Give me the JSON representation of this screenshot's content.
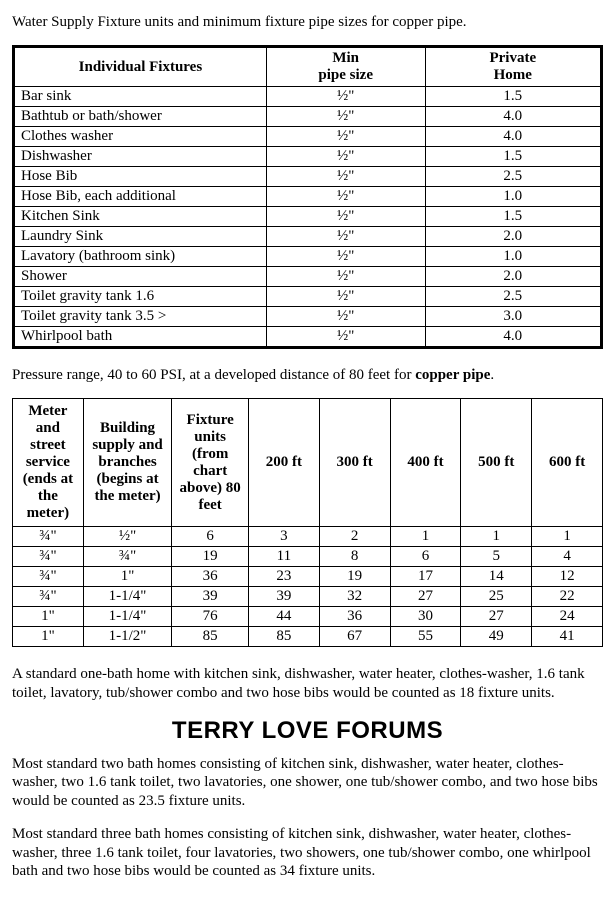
{
  "intro": "Water Supply Fixture units and minimum fixture pipe sizes for copper pipe.",
  "table1": {
    "headers": {
      "col1": "Individual Fixtures",
      "col2_line1": "Min",
      "col2_line2": "pipe size",
      "col3_line1": "Private",
      "col3_line2": "Home"
    },
    "rows": [
      {
        "fixture": "Bar sink",
        "size": "½\"",
        "home": "1.5"
      },
      {
        "fixture": "Bathtub or bath/shower",
        "size": "½\"",
        "home": "4.0"
      },
      {
        "fixture": "Clothes washer",
        "size": "½\"",
        "home": "4.0"
      },
      {
        "fixture": "Dishwasher",
        "size": "½\"",
        "home": "1.5"
      },
      {
        "fixture": "Hose Bib",
        "size": "½\"",
        "home": "2.5"
      },
      {
        "fixture": "Hose Bib, each additional",
        "size": "½\"",
        "home": "1.0"
      },
      {
        "fixture": "Kitchen Sink",
        "size": "½\"",
        "home": "1.5"
      },
      {
        "fixture": "Laundry Sink",
        "size": "½\"",
        "home": "2.0"
      },
      {
        "fixture": "Lavatory (bathroom sink)",
        "size": "½\"",
        "home": "1.0"
      },
      {
        "fixture": "Shower",
        "size": "½\"",
        "home": "2.0"
      },
      {
        "fixture": "Toilet gravity tank 1.6",
        "size": "½\"",
        "home": "2.5"
      },
      {
        "fixture": "Toilet gravity tank 3.5 >",
        "size": "½\"",
        "home": "3.0"
      },
      {
        "fixture": "Whirlpool bath",
        "size": "½\"",
        "home": "4.0"
      }
    ]
  },
  "subhead_pre": "Pressure range, 40 to 60 PSI, at a developed distance of 80 feet for ",
  "subhead_bold": "copper pipe",
  "subhead_post": ".",
  "table2": {
    "headers": {
      "h1": "Meter and street service (ends at the meter)",
      "h2": "Building supply and branches (begins at the meter)",
      "h3": "Fixture units (from chart above) 80 feet",
      "h4": "200 ft",
      "h5": "300 ft",
      "h6": "400 ft",
      "h7": "500 ft",
      "h8": "600 ft"
    },
    "rows": [
      {
        "c": [
          "¾\"",
          "½\"",
          "6",
          "3",
          "2",
          "1",
          "1",
          "1"
        ]
      },
      {
        "c": [
          "¾\"",
          "¾\"",
          "19",
          "11",
          "8",
          "6",
          "5",
          "4"
        ]
      },
      {
        "c": [
          "¾\"",
          "1\"",
          "36",
          "23",
          "19",
          "17",
          "14",
          "12"
        ]
      },
      {
        "c": [
          "¾\"",
          "1-1/4\"",
          "39",
          "39",
          "32",
          "27",
          "25",
          "22"
        ]
      },
      {
        "c": [
          "1\"",
          "1-1/4\"",
          "76",
          "44",
          "36",
          "30",
          "27",
          "24"
        ]
      },
      {
        "c": [
          "1\"",
          "1-1/2\"",
          "85",
          "85",
          "67",
          "55",
          "49",
          "41"
        ]
      }
    ]
  },
  "para1": "A standard one-bath home with kitchen sink, dishwasher, water heater, clothes-washer, 1.6 tank toilet, lavatory, tub/shower combo and two hose bibs would be counted as 18 fixture units.",
  "forum_title": "TERRY LOVE FORUMS",
  "para2": "Most standard two bath homes   consisting of kitchen sink, dishwasher, water heater, clothes-washer, two 1.6 tank toilet, two lavatories, one shower, one tub/shower combo, and two hose bibs would be counted as 23.5 fixture units.",
  "para3": "Most standard three bath homes   consisting of kitchen sink, dishwasher, water heater, clothes-washer, three 1.6 tank toilet, four lavatories, two showers, one tub/shower combo, one whirlpool bath and two hose bibs would be counted as 34 fixture units."
}
